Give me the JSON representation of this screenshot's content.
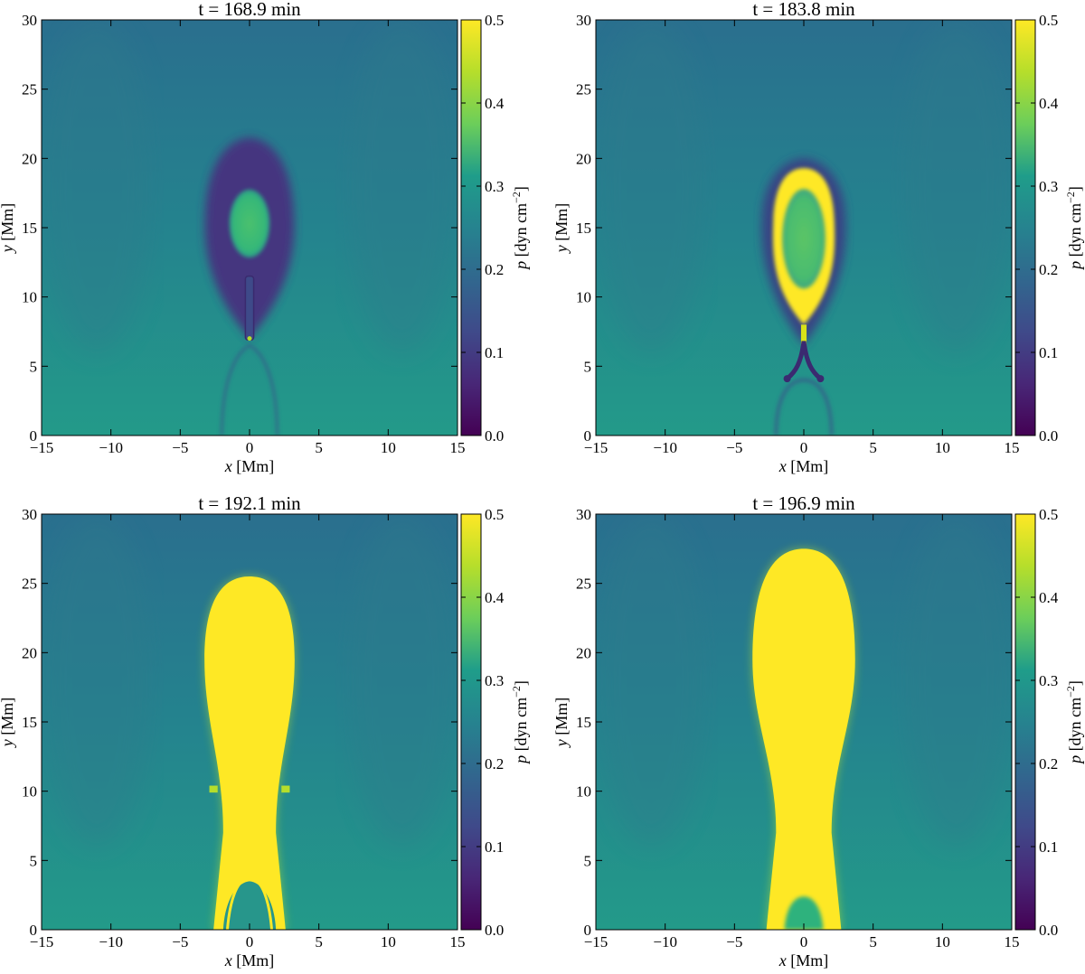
{
  "figure": {
    "colormap": "viridis",
    "colormap_stops": [
      "#440154",
      "#482777",
      "#3f4a8a",
      "#31678e",
      "#26838f",
      "#1f9d8a",
      "#6cce5a",
      "#b6de2b",
      "#fee825"
    ]
  },
  "chart_data": [
    {
      "type": "heatmap",
      "title": "t =  168.9 min",
      "xlabel_var": "x",
      "xlabel_unit": " [Mm]",
      "ylabel_var": "y",
      "ylabel_unit": " [Mm]",
      "xlim": [
        -15,
        15
      ],
      "ylim": [
        0,
        30
      ],
      "xticks": [
        -15,
        -10,
        -5,
        0,
        5,
        10,
        15
      ],
      "yticks": [
        0,
        5,
        10,
        15,
        20,
        25,
        30
      ],
      "colorbar": {
        "label_var": "p",
        "label_unit": " [dyn cm",
        "label_exp": "−2",
        "label_close": "]",
        "range": [
          0.0,
          0.5
        ],
        "ticks": [
          0.0,
          0.1,
          0.2,
          0.3,
          0.4,
          0.5
        ]
      },
      "features": [
        {
          "kind": "cavity",
          "x": 0,
          "y": 15.3,
          "rx": 3.2,
          "ry": 6.2,
          "value": 0.05
        },
        {
          "kind": "core",
          "x": 0,
          "y": 15.3,
          "rx": 1.4,
          "ry": 2.4,
          "value": 0.37
        },
        {
          "kind": "current-sheet",
          "x": 0,
          "y0": 7,
          "y1": 11.5,
          "value": 0.05
        }
      ]
    },
    {
      "type": "heatmap",
      "title": "t =  183.8 min",
      "xlabel_var": "x",
      "xlabel_unit": " [Mm]",
      "ylabel_var": "y",
      "ylabel_unit": " [Mm]",
      "xlim": [
        -15,
        15
      ],
      "ylim": [
        0,
        30
      ],
      "xticks": [
        -15,
        -10,
        -5,
        0,
        5,
        10,
        15
      ],
      "yticks": [
        0,
        5,
        10,
        15,
        20,
        25,
        30
      ],
      "colorbar": {
        "label_var": "p",
        "label_unit": " [dyn cm",
        "label_exp": "−2",
        "label_close": "]",
        "range": [
          0.0,
          0.5
        ],
        "ticks": [
          0.0,
          0.1,
          0.2,
          0.3,
          0.4,
          0.5
        ]
      },
      "features": [
        {
          "kind": "shell",
          "x": 0,
          "y": 14.8,
          "rx": 2.2,
          "ry": 4.8,
          "value": 0.5
        },
        {
          "kind": "core",
          "x": 0,
          "y": 14.5,
          "rx": 1.6,
          "ry": 3.6,
          "value": 0.35
        },
        {
          "kind": "x-point",
          "x": 0,
          "y": 5,
          "value": 0.05
        }
      ]
    },
    {
      "type": "heatmap",
      "title": "t =  192.1 min",
      "xlabel_var": "x",
      "xlabel_unit": " [Mm]",
      "ylabel_var": "y",
      "ylabel_unit": " [Mm]",
      "xlim": [
        -15,
        15
      ],
      "ylim": [
        0,
        30
      ],
      "xticks": [
        -15,
        -10,
        -5,
        0,
        5,
        10,
        15
      ],
      "yticks": [
        0,
        5,
        10,
        15,
        20,
        25,
        30
      ],
      "colorbar": {
        "label_var": "p",
        "label_unit": " [dyn cm",
        "label_exp": "−2",
        "label_close": "]",
        "range": [
          0.0,
          0.5
        ],
        "ticks": [
          0.0,
          0.1,
          0.2,
          0.3,
          0.4,
          0.5
        ]
      },
      "features": [
        {
          "kind": "plume",
          "x": 0,
          "y_top": 25.5,
          "width_top": 6.5,
          "width_neck": 3.8,
          "width_base": 5.2,
          "value": 0.5
        }
      ]
    },
    {
      "type": "heatmap",
      "title": "t =  196.9 min",
      "xlabel_var": "x",
      "xlabel_unit": " [Mm]",
      "ylabel_var": "y",
      "ylabel_unit": " [Mm]",
      "xlim": [
        -15,
        15
      ],
      "ylim": [
        0,
        30
      ],
      "xticks": [
        -15,
        -10,
        -5,
        0,
        5,
        10,
        15
      ],
      "yticks": [
        0,
        5,
        10,
        15,
        20,
        25,
        30
      ],
      "colorbar": {
        "label_var": "p",
        "label_unit": " [dyn cm",
        "label_exp": "−2",
        "label_close": "]",
        "range": [
          0.0,
          0.5
        ],
        "ticks": [
          0.0,
          0.1,
          0.2,
          0.3,
          0.4,
          0.5
        ]
      },
      "features": [
        {
          "kind": "plume",
          "x": 0,
          "y_top": 27.5,
          "width_top": 7.4,
          "width_neck": 4.0,
          "width_base": 5.4,
          "value": 0.5
        }
      ]
    }
  ]
}
